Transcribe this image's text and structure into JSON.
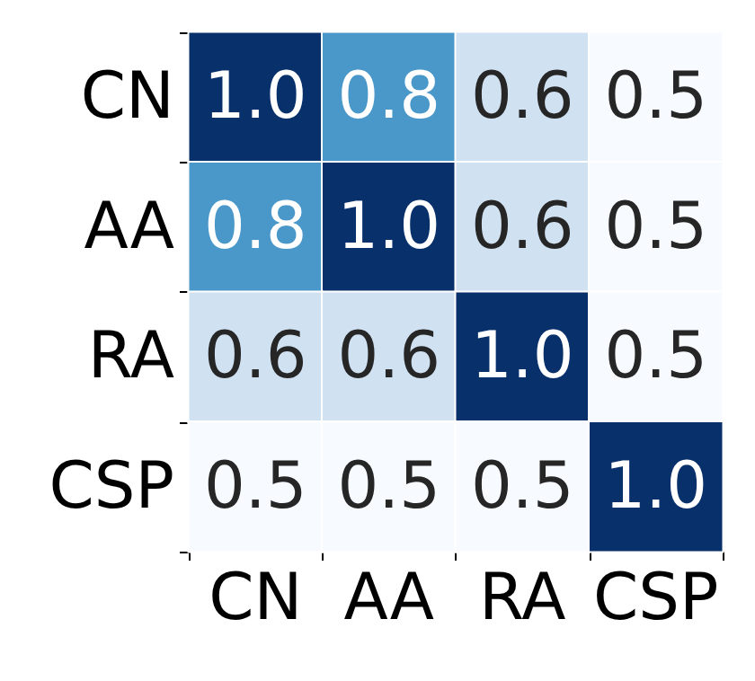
{
  "chart_data": {
    "type": "heatmap",
    "categories": [
      "CN",
      "AA",
      "RA",
      "CSP"
    ],
    "y_categories": [
      "CN",
      "AA",
      "RA",
      "CSP"
    ],
    "cells": [
      [
        1.0,
        0.8,
        0.6,
        0.5
      ],
      [
        0.8,
        1.0,
        0.6,
        0.5
      ],
      [
        0.6,
        0.6,
        1.0,
        0.5
      ],
      [
        0.5,
        0.5,
        0.5,
        1.0
      ]
    ],
    "cell_labels": [
      [
        "1.0",
        "0.8",
        "0.6",
        "0.5"
      ],
      [
        "0.8",
        "1.0",
        "0.6",
        "0.5"
      ],
      [
        "0.6",
        "0.6",
        "1.0",
        "0.5"
      ],
      [
        "0.5",
        "0.5",
        "0.5",
        "1.0"
      ]
    ]
  }
}
